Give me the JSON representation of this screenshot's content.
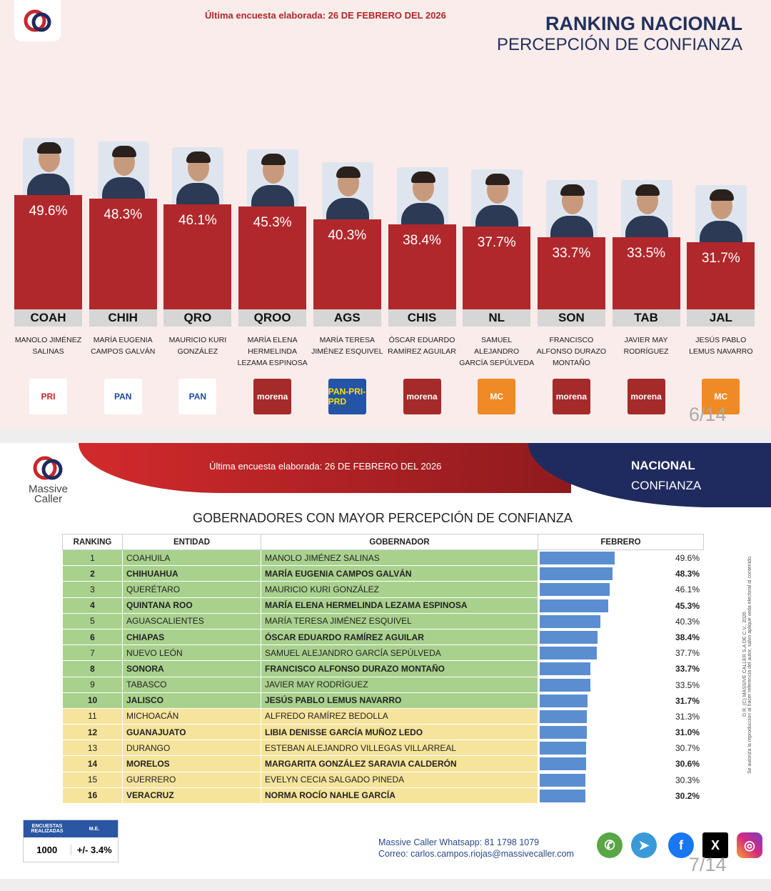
{
  "top": {
    "survey": "Última encuesta elaborada: 26 DE FEBRERO DEL 2026",
    "title": "RANKING NACIONAL",
    "subtitle": "PERCEPCIÓN DE CONFIANZA",
    "page": "6/14",
    "items": [
      {
        "pct": 49.6,
        "label": "49.6%",
        "state": "COAH",
        "name": "MANOLO JIMÉNEZ SALINAS",
        "party": "PRI"
      },
      {
        "pct": 48.3,
        "label": "48.3%",
        "state": "CHIH",
        "name": "MARÍA EUGENIA CAMPOS GALVÁN",
        "party": "PAN"
      },
      {
        "pct": 46.1,
        "label": "46.1%",
        "state": "QRO",
        "name": "MAURICIO KURI GONZÁLEZ",
        "party": "PAN"
      },
      {
        "pct": 45.3,
        "label": "45.3%",
        "state": "QROO",
        "name": "MARÍA ELENA HERMELINDA LEZAMA ESPINOSA",
        "party": "morena"
      },
      {
        "pct": 40.3,
        "label": "40.3%",
        "state": "AGS",
        "name": "MARÍA TERESA JIMÉNEZ ESQUIVEL",
        "party": "PAN-PRI-PRD"
      },
      {
        "pct": 38.4,
        "label": "38.4%",
        "state": "CHIS",
        "name": "ÓSCAR EDUARDO RAMÍREZ AGUILAR",
        "party": "morena"
      },
      {
        "pct": 37.7,
        "label": "37.7%",
        "state": "NL",
        "name": "SAMUEL ALEJANDRO GARCÍA SEPÚLVEDA",
        "party": "MC"
      },
      {
        "pct": 33.7,
        "label": "33.7%",
        "state": "SON",
        "name": "FRANCISCO ALFONSO DURAZO MONTAÑO",
        "party": "morena"
      },
      {
        "pct": 33.5,
        "label": "33.5%",
        "state": "TAB",
        "name": "JAVIER MAY RODRÍGUEZ",
        "party": "morena"
      },
      {
        "pct": 31.7,
        "label": "31.7%",
        "state": "JAL",
        "name": "JESÚS PABLO LEMUS NAVARRO",
        "party": "MC"
      }
    ]
  },
  "bottom": {
    "brand": "Massive Caller",
    "survey": "Última encuesta elaborada: 26 DE FEBRERO DEL 2026",
    "nacional": "NACIONAL",
    "confianza": "CONFIANZA",
    "title": "GOBERNADORES CON MAYOR PERCEPCIÓN DE CONFIANZA",
    "headers": [
      "RANKING",
      "ENTIDAD",
      "GOBERNADOR",
      "FEBRERO"
    ],
    "rows": [
      [
        "1",
        "COAHUILA",
        "MANOLO JIMÉNEZ SALINAS",
        49.6,
        "49.6%"
      ],
      [
        "2",
        "CHIHUAHUA",
        "MARÍA EUGENIA CAMPOS GALVÁN",
        48.3,
        "48.3%"
      ],
      [
        "3",
        "QUERÉTARO",
        "MAURICIO KURI GONZÁLEZ",
        46.1,
        "46.1%"
      ],
      [
        "4",
        "QUINTANA ROO",
        "MARÍA ELENA HERMELINDA LEZAMA ESPINOSA",
        45.3,
        "45.3%"
      ],
      [
        "5",
        "AGUASCALIENTES",
        "MARÍA TERESA JIMÉNEZ ESQUIVEL",
        40.3,
        "40.3%"
      ],
      [
        "6",
        "CHIAPAS",
        "ÓSCAR EDUARDO RAMÍREZ AGUILAR",
        38.4,
        "38.4%"
      ],
      [
        "7",
        "NUEVO LEÓN",
        "SAMUEL ALEJANDRO GARCÍA SEPÚLVEDA",
        37.7,
        "37.7%"
      ],
      [
        "8",
        "SONORA",
        "FRANCISCO ALFONSO DURAZO MONTAÑO",
        33.7,
        "33.7%"
      ],
      [
        "9",
        "TABASCO",
        "JAVIER MAY RODRÍGUEZ",
        33.5,
        "33.5%"
      ],
      [
        "10",
        "JALISCO",
        "JESÚS PABLO LEMUS NAVARRO",
        31.7,
        "31.7%"
      ],
      [
        "11",
        "MICHOACÁN",
        "ALFREDO RAMÍREZ BEDOLLA",
        31.3,
        "31.3%"
      ],
      [
        "12",
        "GUANAJUATO",
        "LIBIA DENISSE GARCÍA MUÑOZ LEDO",
        31.0,
        "31.0%"
      ],
      [
        "13",
        "DURANGO",
        "ESTEBAN ALEJANDRO VILLEGAS VILLARREAL",
        30.7,
        "30.7%"
      ],
      [
        "14",
        "MORELOS",
        "MARGARITA GONZÁLEZ SARAVIA CALDERÓN",
        30.6,
        "30.6%"
      ],
      [
        "15",
        "GUERRERO",
        "EVELYN CECIA SALGADO PINEDA",
        30.3,
        "30.3%"
      ],
      [
        "16",
        "VERACRUZ",
        "NORMA ROCÍO NAHLE GARCÍA",
        30.2,
        "30.2%"
      ]
    ],
    "enc_label": "ENCUESTAS REALIZADAS",
    "me_label": "M.E.",
    "enc": "1000",
    "me": "+/- 3.4%",
    "whatsapp": "Massive Caller Whatsapp: 81 1798 1079",
    "email": "Correo: carlos.campos.riojas@massivecaller.com",
    "copyright": "D.R. (C) MASSIVE CALLER S.A DE C.V., 2026",
    "notice": "Se autoriza la reproducción al hacer referencia del autor, salvo aplique veda electoral al contenido.",
    "page": "7/14"
  },
  "colors": {
    "bar_red": "#b1282c",
    "navy": "#1f2b5e",
    "bar_blue": "#5b8ed0",
    "green": "#a9d18e",
    "yellow": "#f6e49c"
  }
}
